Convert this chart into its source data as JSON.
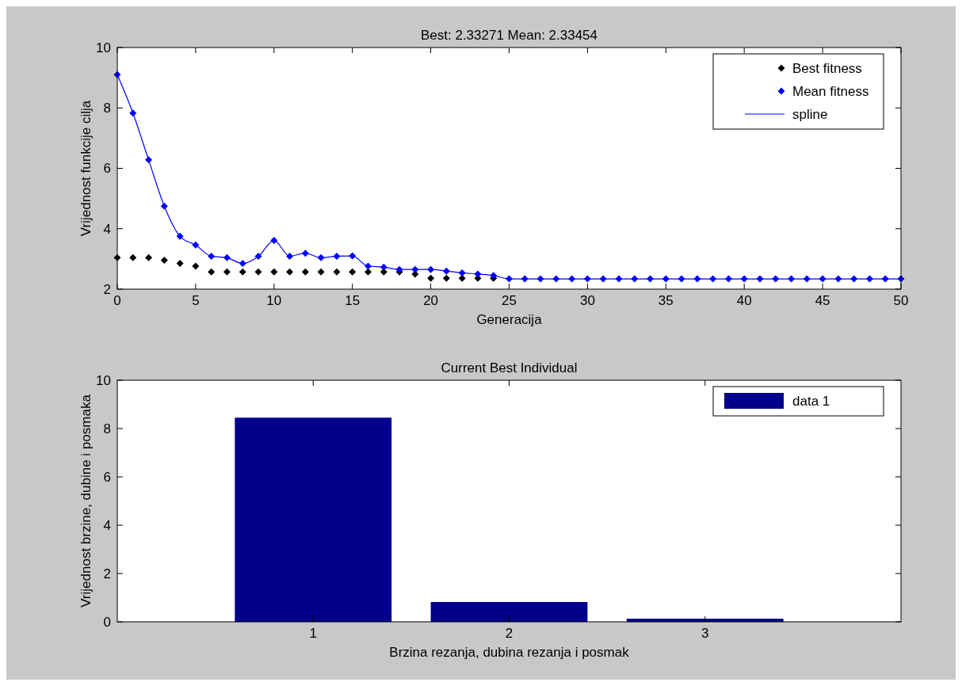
{
  "chart_data": [
    {
      "type": "scatter",
      "title": "Best: 2.33271 Mean: 2.33454",
      "xlabel": "Generacija",
      "ylabel": "Vrijednost funkcije cilja",
      "xlim": [
        0,
        50
      ],
      "xticks": [
        0,
        5,
        10,
        15,
        20,
        25,
        30,
        35,
        40,
        45,
        50
      ],
      "ylim": [
        2,
        10
      ],
      "yticks": [
        2,
        4,
        6,
        8,
        10
      ],
      "legend": "top right",
      "x": [
        0,
        1,
        2,
        3,
        4,
        5,
        6,
        7,
        8,
        9,
        10,
        11,
        12,
        13,
        14,
        15,
        16,
        17,
        18,
        19,
        20,
        21,
        22,
        23,
        24,
        25,
        26,
        27,
        28,
        29,
        30,
        31,
        32,
        33,
        34,
        35,
        36,
        37,
        38,
        39,
        40,
        41,
        42,
        43,
        44,
        45,
        46,
        47,
        48,
        49,
        50
      ],
      "series": [
        {
          "name": "Best fitness",
          "marker": "diamond",
          "color": "#000000",
          "values": [
            3.04,
            3.04,
            3.04,
            2.96,
            2.85,
            2.76,
            2.57,
            2.57,
            2.57,
            2.57,
            2.57,
            2.57,
            2.57,
            2.57,
            2.57,
            2.57,
            2.57,
            2.57,
            2.57,
            2.5,
            2.36,
            2.36,
            2.36,
            2.36,
            2.36,
            null,
            null,
            null,
            null,
            null,
            null,
            null,
            null,
            null,
            null,
            null,
            null,
            null,
            null,
            null,
            null,
            null,
            null,
            null,
            null,
            null,
            null,
            null,
            null,
            null,
            null
          ]
        },
        {
          "name": "Mean fitness",
          "marker": "diamond",
          "color": "#0000ff",
          "values": [
            9.1,
            7.83,
            6.28,
            4.75,
            3.75,
            3.46,
            3.09,
            3.04,
            2.85,
            3.09,
            3.61,
            3.09,
            3.19,
            3.04,
            3.09,
            3.1,
            2.76,
            2.73,
            2.65,
            2.65,
            2.65,
            2.6,
            2.54,
            2.5,
            2.45,
            2.34,
            2.34,
            2.34,
            2.34,
            2.34,
            2.34,
            2.34,
            2.34,
            2.34,
            2.34,
            2.34,
            2.34,
            2.34,
            2.34,
            2.34,
            2.34,
            2.34,
            2.34,
            2.34,
            2.34,
            2.34,
            2.34,
            2.34,
            2.34,
            2.34,
            2.34
          ]
        },
        {
          "name": "spline",
          "type": "line",
          "marker": "none",
          "line_style": "solid",
          "color": "#0000ff",
          "values": [
            9.1,
            7.83,
            6.28,
            4.75,
            3.75,
            3.46,
            3.09,
            3.04,
            2.85,
            3.09,
            3.61,
            3.09,
            3.19,
            3.04,
            3.09,
            3.1,
            2.76,
            2.73,
            2.65,
            2.65,
            2.65,
            2.6,
            2.54,
            2.5,
            2.45,
            2.34,
            2.34,
            2.34,
            2.34,
            2.34,
            2.34,
            2.34,
            2.34,
            2.34,
            2.34,
            2.34,
            2.34,
            2.34,
            2.34,
            2.34,
            2.34,
            2.34,
            2.34,
            2.34,
            2.34,
            2.34,
            2.34,
            2.34,
            2.34,
            2.34,
            2.34
          ]
        }
      ]
    },
    {
      "type": "bar",
      "title": "Current Best Individual",
      "xlabel": "Brzina rezanja, dubina rezanja i posmak",
      "ylabel": "Vrijednost brzine, dubine i posmaka",
      "xlim": [
        0,
        4
      ],
      "xticks": [
        1,
        2,
        3
      ],
      "ylim": [
        0,
        10
      ],
      "yticks": [
        0,
        2,
        4,
        6,
        8,
        10
      ],
      "legend": "top right",
      "x": [
        1,
        2,
        3
      ],
      "series": [
        {
          "name": "data 1",
          "color": "#00008b",
          "values": [
            8.45,
            0.82,
            0.13
          ]
        }
      ]
    }
  ]
}
